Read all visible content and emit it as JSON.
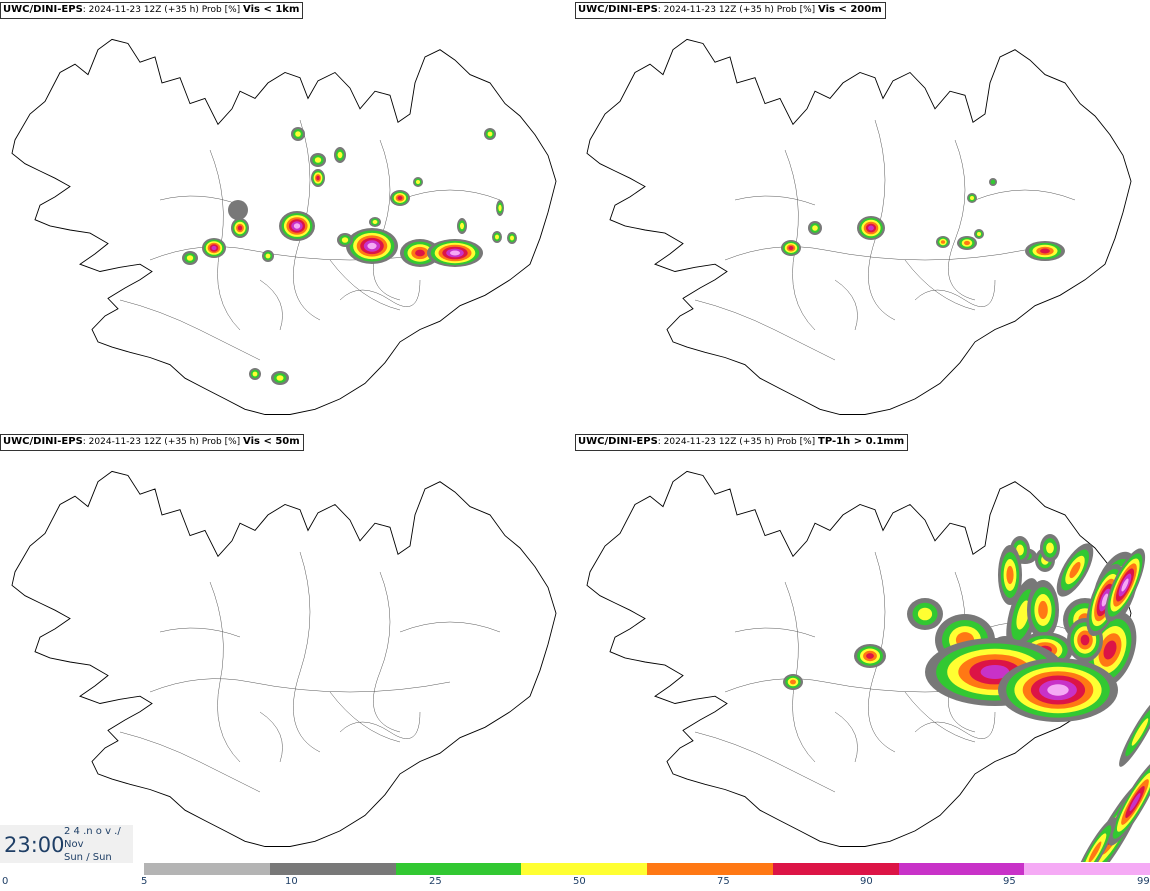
{
  "panels": [
    {
      "model": "UWC/DINI-EPS",
      "run": ": 2024-11-23 12Z (+35 h) Prob [%]",
      "variable": "Vis < 1km"
    },
    {
      "model": "UWC/DINI-EPS",
      "run": ": 2024-11-23 12Z (+35 h) Prob [%]",
      "variable": "Vis < 200m"
    },
    {
      "model": "UWC/DINI-EPS",
      "run": ": 2024-11-23 12Z (+35 h) Prob [%]",
      "variable": "Vis < 50m"
    },
    {
      "model": "UWC/DINI-EPS",
      "run": ": 2024-11-23 12Z (+35 h) Prob [%]",
      "variable": "TP-1h > 0.1mm"
    }
  ],
  "valid_time": {
    "time": "23:00",
    "date_line": "2 4 .n o v ./",
    "month": "Nov",
    "weekday": "Sun / Sun"
  },
  "colorbar": {
    "ticks": [
      "0",
      "5",
      "10",
      "25",
      "50",
      "75",
      "90",
      "95",
      "99"
    ],
    "colors": [
      "#b4b4b4",
      "#787878",
      "#32c832",
      "#ffff32",
      "#ff7814",
      "#dc1446",
      "#c832c8",
      "#f5aaf5"
    ]
  }
}
